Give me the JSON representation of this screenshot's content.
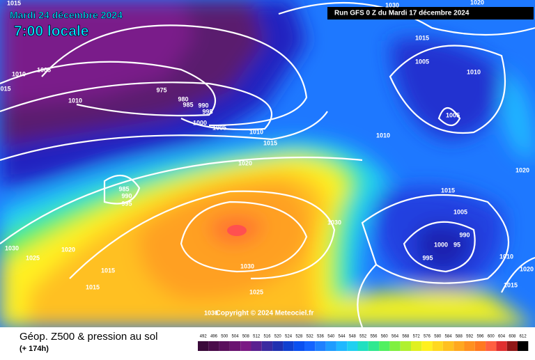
{
  "header": {
    "date": "Mardi 24 décembre 2024",
    "time": "7:00 locale",
    "run": "Run GFS 0 Z du Mardi 17 décembre 2024"
  },
  "map": {
    "copyright": "Copyright © 2024 Meteociel.fr",
    "isobar_labels": [
      "1015",
      "1005",
      "1010",
      "015",
      "1010",
      "975",
      "980",
      "985",
      "990",
      "995",
      "1000",
      "1005",
      "1010",
      "1015",
      "1020",
      "985",
      "990",
      "995",
      "1030",
      "1020",
      "1025",
      "1015",
      "1015",
      "1030",
      "1025",
      "1030",
      "1030",
      "1020",
      "1015",
      "1005",
      "1010",
      "1005",
      "1010",
      "1015",
      "1020",
      "1005",
      "990",
      "1000",
      "95",
      "995",
      "1010",
      "1015",
      "1020",
      "1030"
    ]
  },
  "footer": {
    "title": "Géop. Z500 & pression au sol",
    "subtitle": "(+ 174h)"
  },
  "legend": {
    "levels": [
      492,
      496,
      500,
      504,
      508,
      512,
      516,
      520,
      524,
      528,
      532,
      536,
      540,
      544,
      548,
      552,
      556,
      560,
      564,
      568,
      572,
      576,
      580,
      584,
      588,
      592,
      596,
      600,
      604,
      608,
      612
    ],
    "colors": [
      "#3a0a3a",
      "#4a0c4a",
      "#5a105c",
      "#6a1470",
      "#7a1a84",
      "#5a2090",
      "#3a2aa0",
      "#2030b0",
      "#1040d0",
      "#0a50f0",
      "#1464ff",
      "#1e80ff",
      "#1e9cff",
      "#20b8ff",
      "#20d0f0",
      "#20e0c0",
      "#30e890",
      "#50f060",
      "#80f040",
      "#b0f030",
      "#e0f020",
      "#fff020",
      "#ffd820",
      "#ffc020",
      "#ffa820",
      "#ff9020",
      "#ff7820",
      "#ff6040",
      "#e03030",
      "#901818",
      "#000000"
    ]
  }
}
